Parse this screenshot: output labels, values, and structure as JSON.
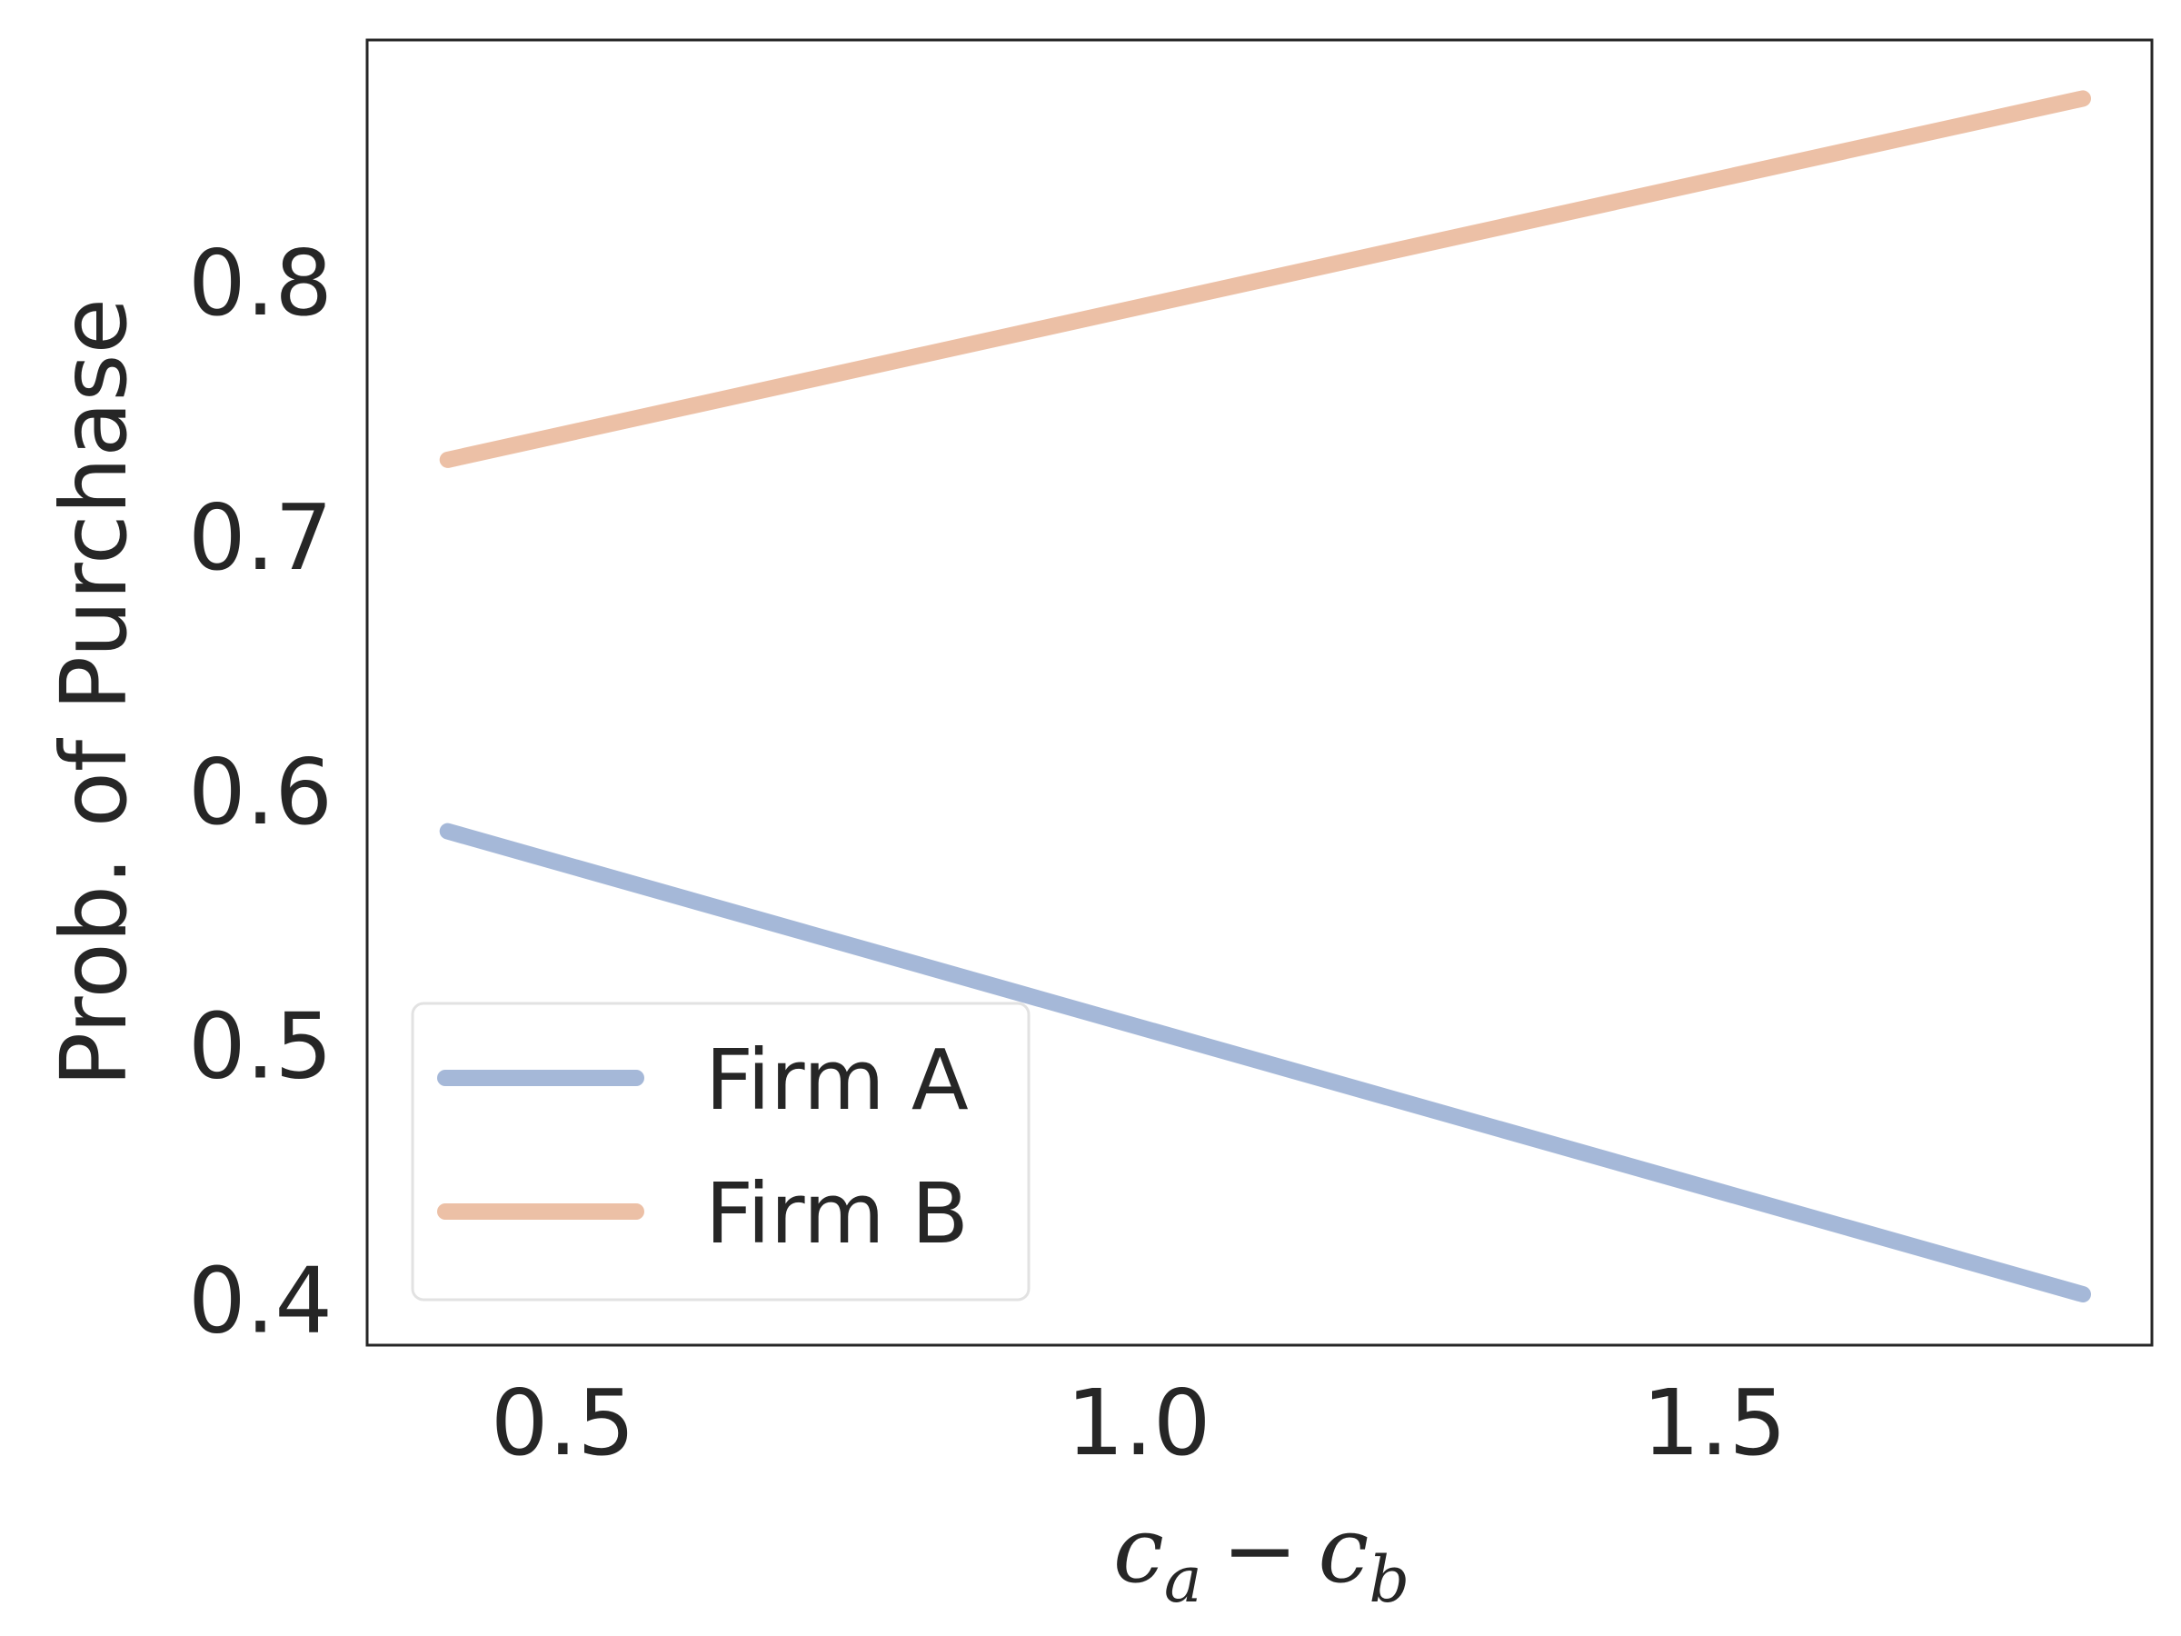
{
  "chart_data": {
    "type": "line",
    "title": "",
    "xlabel": "c_a − c_b",
    "xlabel_parts": {
      "c1": "c",
      "s1": "a",
      "minus": "−",
      "c2": "c",
      "s2": "b"
    },
    "ylabel": "Prob. of Purchase",
    "x_ticks": [
      "0.5",
      "1.0",
      "1.5"
    ],
    "y_ticks": [
      "0.4",
      "0.5",
      "0.6",
      "0.7",
      "0.8"
    ],
    "xlim": [
      0.33,
      1.88
    ],
    "ylim": [
      0.382,
      0.895
    ],
    "grid": false,
    "legend_position": "lower-left",
    "series": [
      {
        "name": "Firm A",
        "color": "#a5b8d8",
        "x": [
          0.4,
          1.82
        ],
        "y": [
          0.584,
          0.402
        ]
      },
      {
        "name": "Firm B",
        "color": "#ecc0a6",
        "x": [
          0.4,
          1.82
        ],
        "y": [
          0.73,
          0.872
        ]
      }
    ]
  }
}
